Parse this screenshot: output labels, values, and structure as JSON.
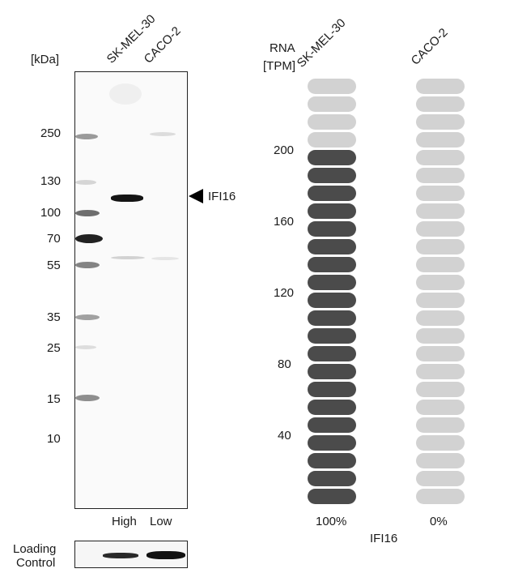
{
  "western_blot": {
    "kda_label": "[kDa]",
    "lanes": [
      "SK-MEL-30",
      "CACO-2"
    ],
    "markers": [
      "250",
      "130",
      "100",
      "70",
      "55",
      "35",
      "25",
      "15",
      "10"
    ],
    "target_label": "IFI16",
    "expression_levels": [
      "High",
      "Low"
    ],
    "loading_control_label": [
      "Loading",
      "Control"
    ]
  },
  "rna_panel": {
    "axis_title": [
      "RNA",
      "[TPM]"
    ],
    "cell_lines": [
      "SK-MEL-30",
      "CACO-2"
    ],
    "y_ticks": [
      "200",
      "160",
      "120",
      "80",
      "40"
    ],
    "columns": [
      {
        "name": "SK-MEL-30",
        "filled": 20,
        "total": 24,
        "percent_label": "100%"
      },
      {
        "name": "CACO-2",
        "filled": 0,
        "total": 24,
        "percent_label": "0%"
      }
    ],
    "gene_label": "IFI16",
    "colors": {
      "filled": "#4b4b4b",
      "empty": "#d2d2d2"
    }
  }
}
